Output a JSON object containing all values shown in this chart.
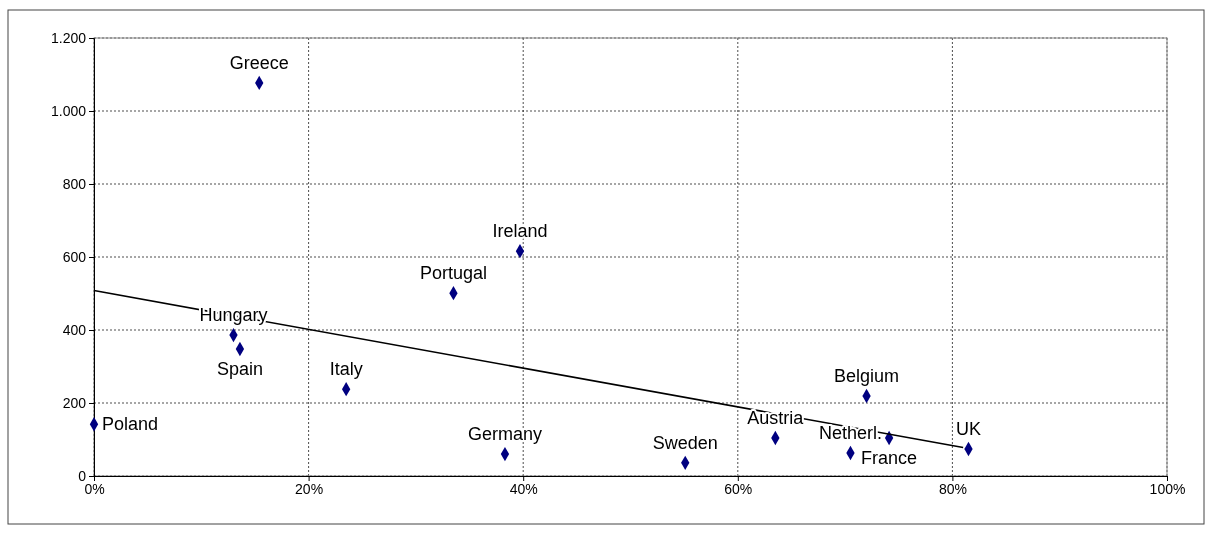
{
  "chart_data": {
    "type": "scatter",
    "xlim": [
      0,
      100
    ],
    "xticks": [
      {
        "value": 0,
        "label": "0%"
      },
      {
        "value": 20,
        "label": "20%"
      },
      {
        "value": 40,
        "label": "40%"
      },
      {
        "value": 60,
        "label": "60%"
      },
      {
        "value": 80,
        "label": "80%"
      },
      {
        "value": 100,
        "label": "100%"
      }
    ],
    "ylim": [
      0,
      1200
    ],
    "yticks": [
      0,
      200,
      400,
      600,
      800,
      {
        "value": 1000,
        "label": "1.000"
      },
      {
        "value": 1200,
        "label": "1.200"
      }
    ],
    "grid": true,
    "series": [
      {
        "color": "#000080",
        "marker": "diamond",
        "x": [
          0,
          13,
          13.6,
          15.4,
          23.5,
          33.5,
          38.3,
          39.7,
          55.1,
          63.5,
          70.5,
          72,
          74.1,
          81.5
        ],
        "values": [
          142,
          386,
          348,
          1077,
          238,
          501,
          60,
          616,
          36,
          104,
          63,
          219,
          104,
          74
        ]
      },
      {
        "type": "line",
        "color": "#000000",
        "marker": "none",
        "line_style": "solid",
        "x": [
          0,
          81
        ],
        "values": [
          508,
          78
        ]
      }
    ],
    "annotations": [
      {
        "text": "Poland",
        "x": 0,
        "y": 142
      },
      {
        "text": "Hungary",
        "x": 13,
        "y": 386
      },
      {
        "text": "Spain",
        "x": 13.6,
        "y": 348
      },
      {
        "text": "Greece",
        "x": 15.4,
        "y": 1077
      },
      {
        "text": "Italy",
        "x": 23.5,
        "y": 238
      },
      {
        "text": "Portugal",
        "x": 33.5,
        "y": 501
      },
      {
        "text": "Germany",
        "x": 38.3,
        "y": 60
      },
      {
        "text": "Ireland",
        "x": 39.7,
        "y": 616
      },
      {
        "text": "Sweden",
        "x": 55.1,
        "y": 36
      },
      {
        "text": "Austria",
        "x": 63.5,
        "y": 104
      },
      {
        "text": "Netherl.",
        "x": 70.5,
        "y": 63
      },
      {
        "text": "Belgium",
        "x": 72,
        "y": 219
      },
      {
        "text": "France",
        "x": 74.1,
        "y": 104
      },
      {
        "text": "UK",
        "x": 81.5,
        "y": 74
      }
    ]
  }
}
